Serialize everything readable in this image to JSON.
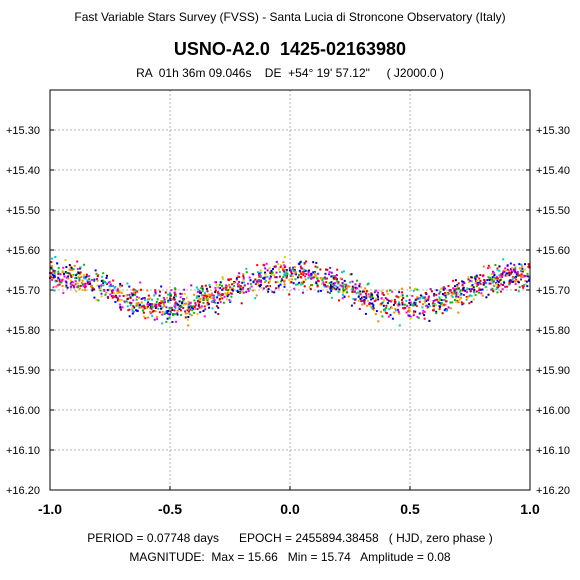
{
  "header": {
    "survey": "Fast Variable Stars Survey (FVSS) - Santa Lucia di Stroncone Observatory (Italy)",
    "star": "USNO-A2.0  1425-02163980",
    "coords": "RA  01h 36m 09.046s    DE  +54° 19' 57.12\"     ( J2000.0 )"
  },
  "footer": {
    "period_line": "PERIOD = 0.07748 days      EPOCH = 2455894.38458   ( HJD, zero phase )",
    "magnitude_line": "MAGNITUDE:  Max = 15.66   Min = 15.74   Amplitude = 0.08"
  },
  "colors": [
    "#ff0000",
    "#0000ff",
    "#00c000",
    "#ff00ff",
    "#00c8c8",
    "#e6c800",
    "#a000c8",
    "#ff8000",
    "#000080",
    "#c80000"
  ],
  "chart_data": {
    "type": "scatter",
    "title": "USNO-A2.0  1425-02163980",
    "xlabel": "",
    "ylabel": "",
    "xlim": [
      -1.0,
      1.0
    ],
    "ylim": [
      15.2,
      16.2
    ],
    "y_inverted": true,
    "x_ticks": [
      "-1.0",
      "-0.5",
      "0.0",
      "0.5",
      "1.0"
    ],
    "y_ticks": [
      "+15.30",
      "+15.40",
      "+15.50",
      "+15.60",
      "+15.70",
      "+15.80",
      "+15.90",
      "+16.00",
      "+16.10",
      "+16.20"
    ],
    "grid": true,
    "light_curve": {
      "max_magnitude": 15.66,
      "min_magnitude": 15.74,
      "amplitude": 0.08,
      "period_days": 0.07748,
      "scatter": 0.03,
      "phase_of_maximum": [
        -1.0,
        0.0,
        1.0
      ],
      "phase_of_minimum": [
        -0.5,
        0.5
      ]
    }
  }
}
